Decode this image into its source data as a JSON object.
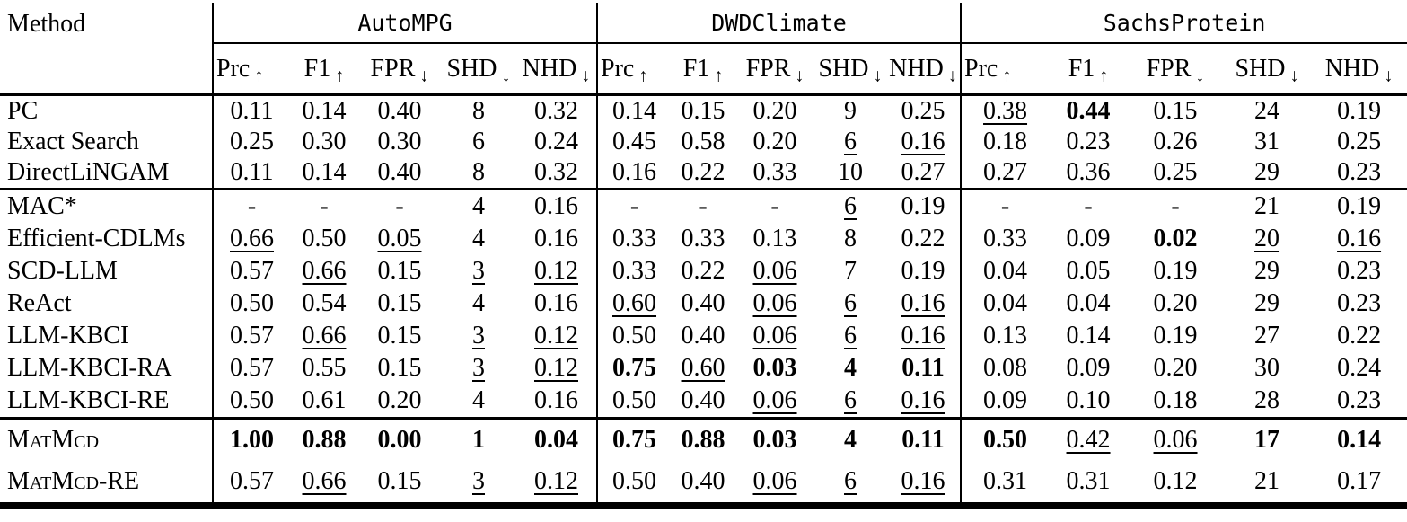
{
  "table": {
    "method_header": "Method",
    "arrows": {
      "up": "↑",
      "down": "↓"
    },
    "groups": [
      {
        "name": "AutoMPG"
      },
      {
        "name": "DWDClimate"
      },
      {
        "name": "SachsProtein"
      }
    ],
    "metrics": [
      {
        "label": "Prc",
        "dir": "up"
      },
      {
        "label": "F1",
        "dir": "up"
      },
      {
        "label": "FPR",
        "dir": "down"
      },
      {
        "label": "SHD",
        "dir": "down"
      },
      {
        "label": "NHD",
        "dir": "down"
      }
    ],
    "sections": [
      {
        "rows": [
          {
            "method": "PC",
            "sc": false,
            "cells": [
              [
                "0.11",
                ""
              ],
              [
                "0.14",
                ""
              ],
              [
                "0.40",
                ""
              ],
              [
                "8",
                ""
              ],
              [
                "0.32",
                ""
              ],
              [
                "0.14",
                ""
              ],
              [
                "0.15",
                ""
              ],
              [
                "0.20",
                ""
              ],
              [
                "9",
                ""
              ],
              [
                "0.25",
                ""
              ],
              [
                "0.38",
                "u"
              ],
              [
                "0.44",
                "b"
              ],
              [
                "0.15",
                ""
              ],
              [
                "24",
                ""
              ],
              [
                "0.19",
                ""
              ]
            ]
          },
          {
            "method": "Exact Search",
            "sc": false,
            "cells": [
              [
                "0.25",
                ""
              ],
              [
                "0.30",
                ""
              ],
              [
                "0.30",
                ""
              ],
              [
                "6",
                ""
              ],
              [
                "0.24",
                ""
              ],
              [
                "0.45",
                ""
              ],
              [
                "0.58",
                ""
              ],
              [
                "0.20",
                ""
              ],
              [
                "6",
                "u"
              ],
              [
                "0.16",
                "u"
              ],
              [
                "0.18",
                ""
              ],
              [
                "0.23",
                ""
              ],
              [
                "0.26",
                ""
              ],
              [
                "31",
                ""
              ],
              [
                "0.25",
                ""
              ]
            ]
          },
          {
            "method": "DirectLiNGAM",
            "sc": false,
            "cells": [
              [
                "0.11",
                ""
              ],
              [
                "0.14",
                ""
              ],
              [
                "0.40",
                ""
              ],
              [
                "8",
                ""
              ],
              [
                "0.32",
                ""
              ],
              [
                "0.16",
                ""
              ],
              [
                "0.22",
                ""
              ],
              [
                "0.33",
                ""
              ],
              [
                "10",
                ""
              ],
              [
                "0.27",
                ""
              ],
              [
                "0.27",
                ""
              ],
              [
                "0.36",
                ""
              ],
              [
                "0.25",
                ""
              ],
              [
                "29",
                ""
              ],
              [
                "0.23",
                ""
              ]
            ]
          }
        ]
      },
      {
        "rows": [
          {
            "method": "MAC*",
            "sc": false,
            "cells": [
              [
                "-",
                ""
              ],
              [
                "-",
                ""
              ],
              [
                "-",
                ""
              ],
              [
                "4",
                ""
              ],
              [
                "0.16",
                ""
              ],
              [
                "-",
                ""
              ],
              [
                "-",
                ""
              ],
              [
                "-",
                ""
              ],
              [
                "6",
                "u"
              ],
              [
                "0.19",
                ""
              ],
              [
                "-",
                ""
              ],
              [
                "-",
                ""
              ],
              [
                "-",
                ""
              ],
              [
                "21",
                ""
              ],
              [
                "0.19",
                ""
              ]
            ]
          },
          {
            "method": "Efficient-CDLMs",
            "sc": false,
            "cells": [
              [
                "0.66",
                "u"
              ],
              [
                "0.50",
                ""
              ],
              [
                "0.05",
                "u"
              ],
              [
                "4",
                ""
              ],
              [
                "0.16",
                ""
              ],
              [
                "0.33",
                ""
              ],
              [
                "0.33",
                ""
              ],
              [
                "0.13",
                ""
              ],
              [
                "8",
                ""
              ],
              [
                "0.22",
                ""
              ],
              [
                "0.33",
                ""
              ],
              [
                "0.09",
                ""
              ],
              [
                "0.02",
                "b"
              ],
              [
                "20",
                "u"
              ],
              [
                "0.16",
                "u"
              ]
            ]
          },
          {
            "method": "SCD-LLM",
            "sc": false,
            "cells": [
              [
                "0.57",
                ""
              ],
              [
                "0.66",
                "u"
              ],
              [
                "0.15",
                ""
              ],
              [
                "3",
                "u"
              ],
              [
                "0.12",
                "u"
              ],
              [
                "0.33",
                ""
              ],
              [
                "0.22",
                ""
              ],
              [
                "0.06",
                "u"
              ],
              [
                "7",
                ""
              ],
              [
                "0.19",
                ""
              ],
              [
                "0.04",
                ""
              ],
              [
                "0.05",
                ""
              ],
              [
                "0.19",
                ""
              ],
              [
                "29",
                ""
              ],
              [
                "0.23",
                ""
              ]
            ]
          },
          {
            "method": "ReAct",
            "sc": false,
            "cells": [
              [
                "0.50",
                ""
              ],
              [
                "0.54",
                ""
              ],
              [
                "0.15",
                ""
              ],
              [
                "4",
                ""
              ],
              [
                "0.16",
                ""
              ],
              [
                "0.60",
                "u"
              ],
              [
                "0.40",
                ""
              ],
              [
                "0.06",
                "u"
              ],
              [
                "6",
                "u"
              ],
              [
                "0.16",
                "u"
              ],
              [
                "0.04",
                ""
              ],
              [
                "0.04",
                ""
              ],
              [
                "0.20",
                ""
              ],
              [
                "29",
                ""
              ],
              [
                "0.23",
                ""
              ]
            ]
          },
          {
            "method": "LLM-KBCI",
            "sc": false,
            "cells": [
              [
                "0.57",
                ""
              ],
              [
                "0.66",
                "u"
              ],
              [
                "0.15",
                ""
              ],
              [
                "3",
                "u"
              ],
              [
                "0.12",
                "u"
              ],
              [
                "0.50",
                ""
              ],
              [
                "0.40",
                ""
              ],
              [
                "0.06",
                "u"
              ],
              [
                "6",
                "u"
              ],
              [
                "0.16",
                "u"
              ],
              [
                "0.13",
                ""
              ],
              [
                "0.14",
                ""
              ],
              [
                "0.19",
                ""
              ],
              [
                "27",
                ""
              ],
              [
                "0.22",
                ""
              ]
            ]
          },
          {
            "method": "LLM-KBCI-RA",
            "sc": false,
            "cells": [
              [
                "0.57",
                ""
              ],
              [
                "0.55",
                ""
              ],
              [
                "0.15",
                ""
              ],
              [
                "3",
                "u"
              ],
              [
                "0.12",
                "u"
              ],
              [
                "0.75",
                "b"
              ],
              [
                "0.60",
                "u"
              ],
              [
                "0.03",
                "b"
              ],
              [
                "4",
                "b"
              ],
              [
                "0.11",
                "b"
              ],
              [
                "0.08",
                ""
              ],
              [
                "0.09",
                ""
              ],
              [
                "0.20",
                ""
              ],
              [
                "30",
                ""
              ],
              [
                "0.24",
                ""
              ]
            ]
          },
          {
            "method": "LLM-KBCI-RE",
            "sc": false,
            "cells": [
              [
                "0.50",
                ""
              ],
              [
                "0.61",
                ""
              ],
              [
                "0.20",
                ""
              ],
              [
                "4",
                ""
              ],
              [
                "0.16",
                ""
              ],
              [
                "0.50",
                ""
              ],
              [
                "0.40",
                ""
              ],
              [
                "0.06",
                "u"
              ],
              [
                "6",
                "u"
              ],
              [
                "0.16",
                "u"
              ],
              [
                "0.09",
                ""
              ],
              [
                "0.10",
                ""
              ],
              [
                "0.18",
                ""
              ],
              [
                "28",
                ""
              ],
              [
                "0.23",
                ""
              ]
            ]
          }
        ]
      },
      {
        "rows": [
          {
            "method": "MatMcd",
            "sc": true,
            "cells": [
              [
                "1.00",
                "b"
              ],
              [
                "0.88",
                "b"
              ],
              [
                "0.00",
                "b"
              ],
              [
                "1",
                "b"
              ],
              [
                "0.04",
                "b"
              ],
              [
                "0.75",
                "b"
              ],
              [
                "0.88",
                "b"
              ],
              [
                "0.03",
                "b"
              ],
              [
                "4",
                "b"
              ],
              [
                "0.11",
                "b"
              ],
              [
                "0.50",
                "b"
              ],
              [
                "0.42",
                "u"
              ],
              [
                "0.06",
                "u"
              ],
              [
                "17",
                "b"
              ],
              [
                "0.14",
                "b"
              ]
            ]
          },
          {
            "method": "MatMcd-RE",
            "sc": true,
            "cells": [
              [
                "0.57",
                ""
              ],
              [
                "0.66",
                "u"
              ],
              [
                "0.15",
                ""
              ],
              [
                "3",
                "u"
              ],
              [
                "0.12",
                "u"
              ],
              [
                "0.50",
                ""
              ],
              [
                "0.40",
                ""
              ],
              [
                "0.06",
                "u"
              ],
              [
                "6",
                "u"
              ],
              [
                "0.16",
                "u"
              ],
              [
                "0.31",
                ""
              ],
              [
                "0.31",
                ""
              ],
              [
                "0.12",
                ""
              ],
              [
                "21",
                ""
              ],
              [
                "0.17",
                ""
              ]
            ]
          }
        ]
      }
    ]
  }
}
